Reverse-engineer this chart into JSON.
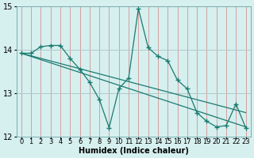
{
  "xlabel": "Humidex (Indice chaleur)",
  "ylabel": "",
  "xlim": [
    -0.5,
    23.5
  ],
  "ylim": [
    12,
    15
  ],
  "yticks": [
    12,
    13,
    14,
    15
  ],
  "xticks": [
    0,
    1,
    2,
    3,
    4,
    5,
    6,
    7,
    8,
    9,
    10,
    11,
    12,
    13,
    14,
    15,
    16,
    17,
    18,
    19,
    20,
    21,
    22,
    23
  ],
  "bg_color": "#d6efef",
  "line_color": "#1a7a6e",
  "data_x": [
    0,
    1,
    2,
    3,
    4,
    5,
    6,
    7,
    8,
    9,
    10,
    11,
    12,
    13,
    14,
    15,
    16,
    17,
    18,
    19,
    20,
    21,
    22,
    23
  ],
  "data_y": [
    13.92,
    13.92,
    14.07,
    14.1,
    14.1,
    13.8,
    13.55,
    13.25,
    12.85,
    12.2,
    13.1,
    13.35,
    14.95,
    14.05,
    13.85,
    13.75,
    13.3,
    13.1,
    12.55,
    12.35,
    12.22,
    12.25,
    12.75,
    12.2
  ],
  "trend1_x": [
    0,
    23
  ],
  "trend1_y": [
    13.92,
    12.22
  ],
  "trend2_x": [
    0,
    23
  ],
  "trend2_y": [
    13.92,
    12.55
  ],
  "grid_color_v": "#d4a0a0",
  "grid_color_h": "#b0c8c8",
  "xlabel_fontsize": 7,
  "tick_fontsize": 6,
  "ytick_fontsize": 7
}
